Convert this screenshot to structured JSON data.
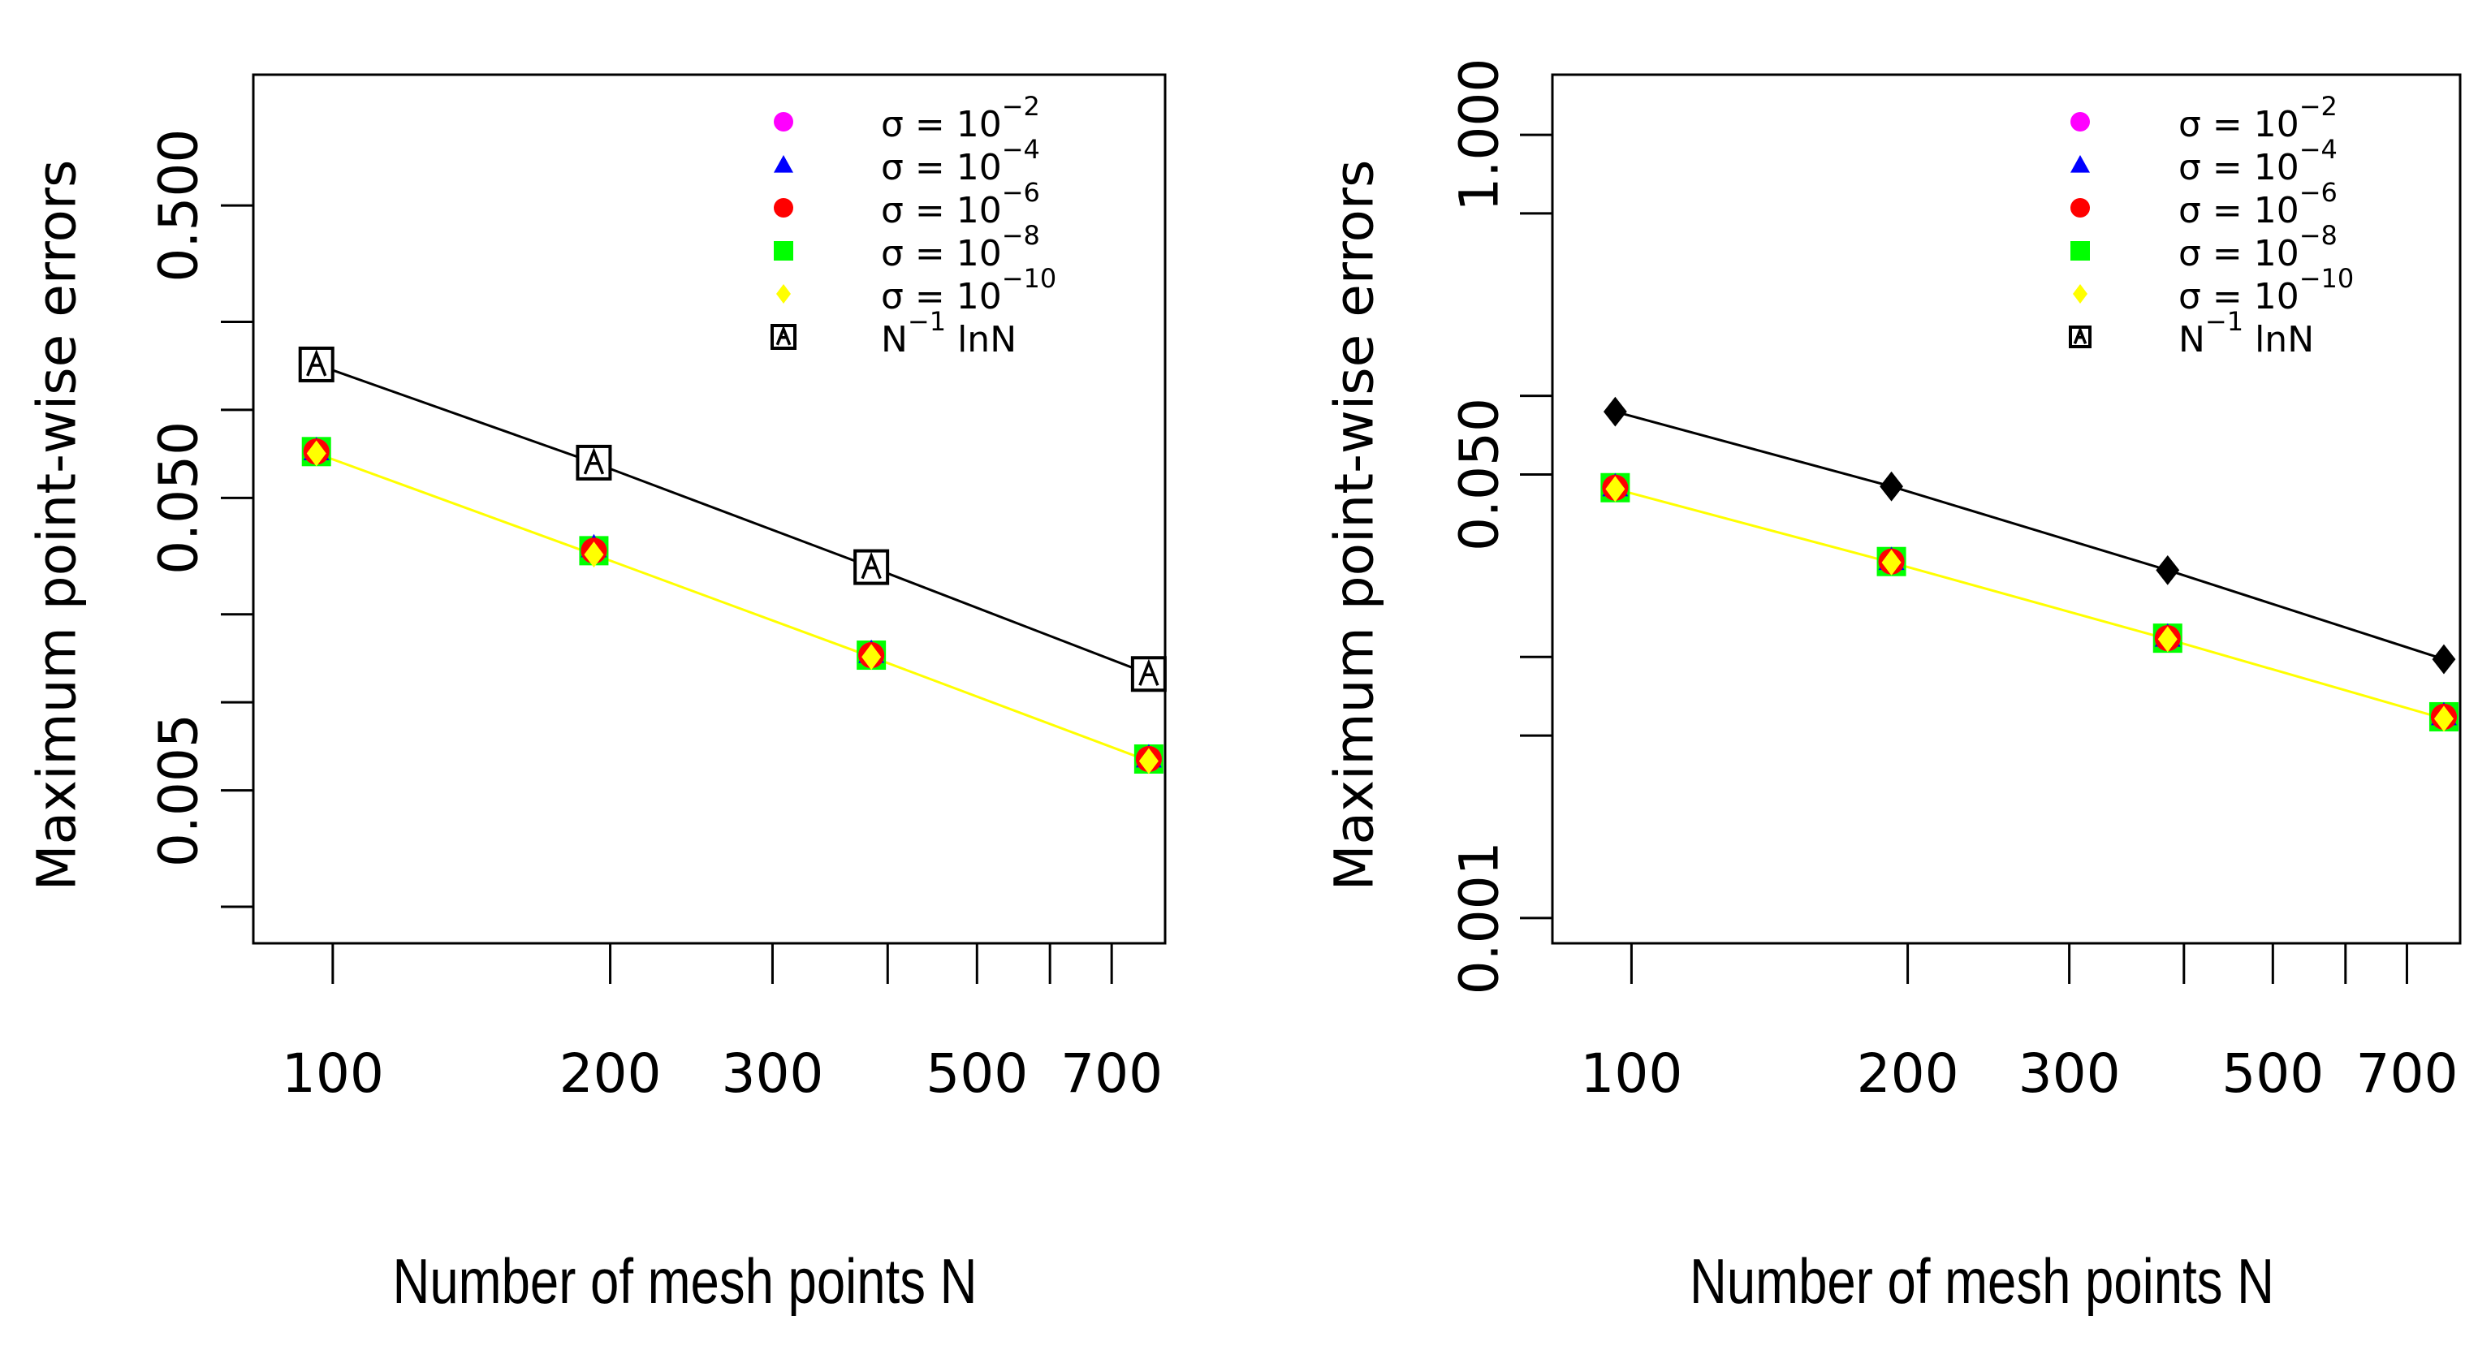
{
  "chart_data": [
    {
      "type": "scatter",
      "xscale": "log",
      "yscale": "log",
      "xlabel": "Number of mesh points N",
      "ylabel": "Maximum point-wise errors",
      "x_ticks": [
        100,
        200,
        300,
        500,
        700
      ],
      "y_ticks": [
        "0.005",
        "0.050",
        "0.500"
      ],
      "y_tick_values": [
        0.005,
        0.05,
        0.5
      ],
      "y_minor_ticks": [
        0.002,
        0.01,
        0.02,
        0.1,
        0.2
      ],
      "xlim": [
        82,
        800
      ],
      "ylim": [
        0.0015,
        1.4
      ],
      "x": [
        96,
        192,
        384,
        768
      ],
      "series": [
        {
          "name": "σ=10^-2",
          "marker": "circle",
          "color": "#ff00ff",
          "values": [
            0.072,
            0.033,
            0.0145,
            0.0064
          ]
        },
        {
          "name": "σ=10^-4",
          "marker": "triangle",
          "color": "#0000ff",
          "values": [
            0.073,
            0.034,
            0.0148,
            0.0065
          ]
        },
        {
          "name": "σ=10^-6",
          "marker": "circle",
          "color": "#ff0000",
          "values": [
            0.072,
            0.033,
            0.0145,
            0.0064
          ]
        },
        {
          "name": "σ=10^-8",
          "marker": "square",
          "color": "#00ff00",
          "values": [
            0.072,
            0.033,
            0.0145,
            0.0064
          ]
        },
        {
          "name": "σ=10^-10",
          "marker": "diamond",
          "color": "#ffff00",
          "values": [
            0.071,
            0.032,
            0.0143,
            0.0063
          ],
          "line": true
        },
        {
          "name": "N^-1 lnN",
          "marker": "open-square-x",
          "color": "#000000",
          "values": [
            0.143,
            0.066,
            0.029,
            0.0125
          ],
          "line": true
        }
      ],
      "legend": {
        "placement": "top-right",
        "entries": [
          {
            "prefix": "σ = 10",
            "sup": "−2"
          },
          {
            "prefix": "σ = 10",
            "sup": "−4"
          },
          {
            "prefix": "σ = 10",
            "sup": "−6"
          },
          {
            "prefix": "σ = 10",
            "sup": "−8"
          },
          {
            "prefix": "σ = 10",
            "sup": "−10"
          },
          {
            "prefix": "N",
            "sup": "−1",
            "suffix": "lnN"
          }
        ]
      }
    },
    {
      "type": "scatter",
      "xscale": "log",
      "yscale": "log",
      "xlabel": "Number of mesh points N",
      "ylabel": "Maximum point-wise errors",
      "x_ticks": [
        100,
        200,
        300,
        500,
        700
      ],
      "y_ticks": [
        "0.001",
        "0.050",
        "1.000"
      ],
      "y_tick_values": [
        0.001,
        0.05,
        1.0
      ],
      "y_minor_ticks": [
        0.005,
        0.01,
        0.1,
        0.5
      ],
      "xlim": [
        82,
        800
      ],
      "ylim": [
        0.0008,
        1.7
      ],
      "x": [
        96,
        192,
        384,
        768
      ],
      "series": [
        {
          "name": "σ=10^-2",
          "marker": "circle",
          "color": "#ff00ff",
          "values": [
            0.0445,
            0.0232,
            0.0118,
            0.0059
          ]
        },
        {
          "name": "σ=10^-4",
          "marker": "triangle",
          "color": "#0000ff",
          "values": [
            0.0452,
            0.0236,
            0.012,
            0.006
          ]
        },
        {
          "name": "σ=10^-6",
          "marker": "circle",
          "color": "#ff0000",
          "values": [
            0.0445,
            0.0232,
            0.0118,
            0.0059
          ]
        },
        {
          "name": "σ=10^-8",
          "marker": "square",
          "color": "#00ff00",
          "values": [
            0.0445,
            0.0232,
            0.0118,
            0.0059
          ]
        },
        {
          "name": "σ=10^-10",
          "marker": "diamond",
          "color": "#ffff00",
          "values": [
            0.044,
            0.023,
            0.0117,
            0.0058
          ],
          "line": true
        },
        {
          "name": "N^-1 lnN",
          "marker": "filled-diamond",
          "color": "#000000",
          "values": [
            0.087,
            0.045,
            0.0215,
            0.0098
          ],
          "line": true
        }
      ],
      "legend": {
        "placement": "top-right",
        "entries": [
          {
            "prefix": "σ = 10",
            "sup": "−2"
          },
          {
            "prefix": "σ = 10",
            "sup": "−4"
          },
          {
            "prefix": "σ = 10",
            "sup": "−6"
          },
          {
            "prefix": "σ = 10",
            "sup": "−8"
          },
          {
            "prefix": "σ = 10",
            "sup": "−10"
          },
          {
            "prefix": "N",
            "sup": "−1",
            "suffix": "lnN"
          }
        ]
      }
    }
  ]
}
